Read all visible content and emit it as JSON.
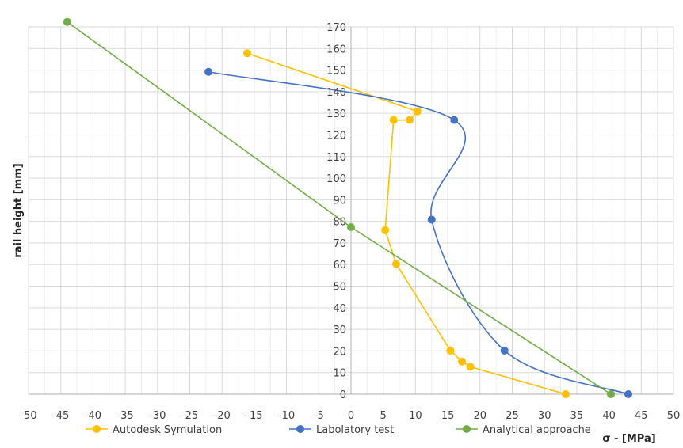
{
  "chart_data": {
    "type": "scatter",
    "xlabel": "σ - [MPa]",
    "ylabel": "rail height [mm]",
    "xlim": [
      -50,
      50
    ],
    "ylim": [
      0,
      170
    ],
    "x_ticks": [
      -50,
      -45,
      -40,
      -35,
      -30,
      -25,
      -20,
      -15,
      -10,
      -5,
      0,
      5,
      10,
      15,
      20,
      25,
      30,
      35,
      40,
      45,
      50
    ],
    "y_ticks": [
      0,
      10,
      20,
      30,
      40,
      50,
      60,
      70,
      80,
      90,
      100,
      110,
      120,
      130,
      140,
      150,
      160,
      170
    ],
    "grid": true,
    "legend_position": "bottom",
    "series": [
      {
        "name": "Autodesk Symulation",
        "color": "#FFC000",
        "line_style": "straight",
        "x": [
          33.3,
          18.5,
          17.2,
          15.4,
          7.0,
          5.3,
          6.6,
          9.1,
          10.3,
          -16.1
        ],
        "y": [
          0,
          12.7,
          15.1,
          20.2,
          60.3,
          75.9,
          126.9,
          126.9,
          130.9,
          157.8
        ]
      },
      {
        "name": "Labolatory test",
        "color": "#4472C4",
        "line_style": "smooth",
        "x": [
          43.0,
          23.8,
          12.5,
          16.0,
          -22.1
        ],
        "y": [
          0,
          20.2,
          80.8,
          126.9,
          149.2
        ]
      },
      {
        "name": "Analytical approache",
        "color": "#70AD47",
        "line_style": "straight",
        "x": [
          40.3,
          0.0,
          -44.0
        ],
        "y": [
          0,
          77.3,
          172.3
        ]
      }
    ]
  }
}
